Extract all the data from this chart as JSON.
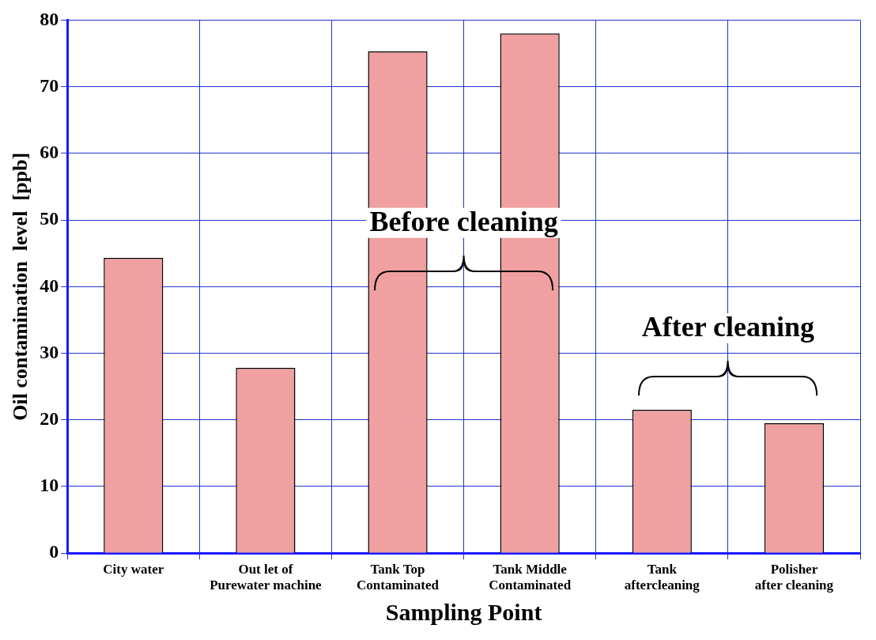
{
  "chart_data": {
    "type": "bar",
    "xlabel": "Sampling Point",
    "ylabel": "Oil contamination  level  [ppb]",
    "categories": [
      "City water",
      "Out let of\nPurewater machine",
      "Tank Top\nContaminated",
      "Tank Middle\nContaminated",
      "Tank\naftercleaning",
      "Polisher\nafter cleaning"
    ],
    "values": [
      44.3,
      27.8,
      75.3,
      78,
      21.5,
      19.5
    ],
    "color": "#f0a0a0",
    "ylim": [
      0,
      80
    ],
    "yticks": [
      0,
      10,
      20,
      30,
      40,
      50,
      60,
      70,
      80
    ],
    "grid": true,
    "legend": false,
    "annotations": [
      "Before cleaning",
      "After cleaning"
    ]
  }
}
